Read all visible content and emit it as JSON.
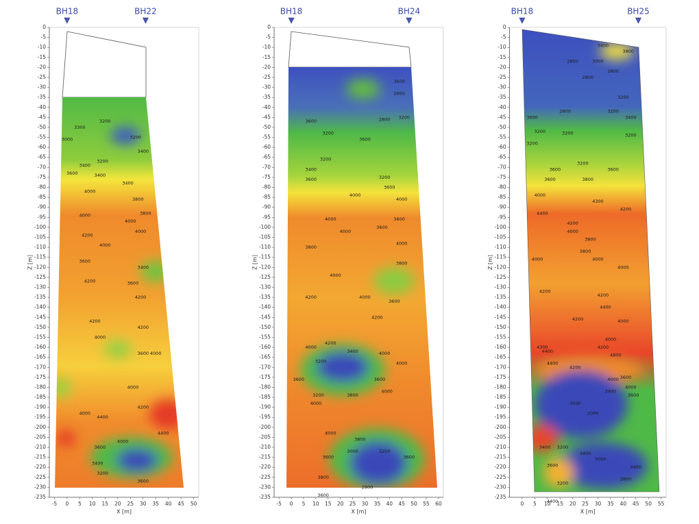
{
  "chart_data": [
    {
      "type": "contour",
      "xlabel": "X [m]",
      "ylabel": "Z [m]",
      "xlim": [
        -7,
        52
      ],
      "ylim": [
        -235,
        0
      ],
      "xticks": [
        -5,
        0,
        5,
        10,
        15,
        20,
        25,
        30,
        35,
        40,
        45,
        50
      ],
      "yticks": [
        0,
        -5,
        -10,
        -15,
        -20,
        -25,
        -30,
        -35,
        -40,
        -45,
        -50,
        -55,
        -60,
        -65,
        -70,
        -75,
        -80,
        -85,
        -90,
        -95,
        -100,
        -105,
        -110,
        -115,
        -120,
        -125,
        -130,
        -135,
        -140,
        -145,
        -150,
        -155,
        -160,
        -165,
        -170,
        -175,
        -180,
        -185,
        -190,
        -195,
        -200,
        -205,
        -210,
        -215,
        -220,
        -225,
        -230,
        -235
      ],
      "boreholes": [
        {
          "label": "BH18",
          "x": 0
        },
        {
          "label": "BH22",
          "x": 31
        }
      ],
      "annotations": [
        {
          "text": "3200",
          "x": 15,
          "y": -47
        },
        {
          "text": "3300",
          "x": 5,
          "y": -50
        },
        {
          "text": "3000",
          "x": 0,
          "y": -56
        },
        {
          "text": "3200",
          "x": 27,
          "y": -55
        },
        {
          "text": "3400",
          "x": 30,
          "y": -62
        },
        {
          "text": "3200",
          "x": 14,
          "y": -67
        },
        {
          "text": "3400",
          "x": 7,
          "y": -69
        },
        {
          "text": "3600",
          "x": 2,
          "y": -73
        },
        {
          "text": "3400",
          "x": 13,
          "y": -74
        },
        {
          "text": "3400",
          "x": 24,
          "y": -78
        },
        {
          "text": "4000",
          "x": 9,
          "y": -82
        },
        {
          "text": "3800",
          "x": 28,
          "y": -86
        },
        {
          "text": "3800",
          "x": 31,
          "y": -93
        },
        {
          "text": "4000",
          "x": 7,
          "y": -94
        },
        {
          "text": "4000",
          "x": 25,
          "y": -97
        },
        {
          "text": "4200",
          "x": 8,
          "y": -104
        },
        {
          "text": "4000",
          "x": 29,
          "y": -102
        },
        {
          "text": "4000",
          "x": 15,
          "y": -109
        },
        {
          "text": "3600",
          "x": 7,
          "y": -117
        },
        {
          "text": "3400",
          "x": 30,
          "y": -120
        },
        {
          "text": "4200",
          "x": 9,
          "y": -127
        },
        {
          "text": "3600",
          "x": 26,
          "y": -128
        },
        {
          "text": "4200",
          "x": 29,
          "y": -135
        },
        {
          "text": "4200",
          "x": 11,
          "y": -147
        },
        {
          "text": "4200",
          "x": 30,
          "y": -150
        },
        {
          "text": "4000",
          "x": 13,
          "y": -155
        },
        {
          "text": "3600",
          "x": 30,
          "y": -163
        },
        {
          "text": "4000",
          "x": 35,
          "y": -163
        },
        {
          "text": "4000",
          "x": 26,
          "y": -180
        },
        {
          "text": "4200",
          "x": 30,
          "y": -190
        },
        {
          "text": "4000",
          "x": 7,
          "y": -193
        },
        {
          "text": "4400",
          "x": 14,
          "y": -195
        },
        {
          "text": "4000",
          "x": 22,
          "y": -207
        },
        {
          "text": "3600",
          "x": 13,
          "y": -210
        },
        {
          "text": "4400",
          "x": 38,
          "y": -203
        },
        {
          "text": "3400",
          "x": 12,
          "y": -218
        },
        {
          "text": "3200",
          "x": 14,
          "y": -223
        },
        {
          "text": "3600",
          "x": 30,
          "y": -227
        }
      ]
    },
    {
      "type": "contour",
      "xlabel": "X [m]",
      "ylabel": "Z [m]",
      "xlim": [
        -7,
        62
      ],
      "ylim": [
        -235,
        0
      ],
      "xticks": [
        -5,
        0,
        5,
        10,
        15,
        20,
        25,
        30,
        35,
        40,
        45,
        50,
        55,
        60
      ],
      "yticks": [
        0,
        -5,
        -10,
        -15,
        -20,
        -25,
        -30,
        -35,
        -40,
        -45,
        -50,
        -55,
        -60,
        -65,
        -70,
        -75,
        -80,
        -85,
        -90,
        -95,
        -100,
        -105,
        -110,
        -115,
        -120,
        -125,
        -130,
        -135,
        -140,
        -145,
        -150,
        -155,
        -160,
        -165,
        -170,
        -175,
        -180,
        -185,
        -190,
        -195,
        -200,
        -205,
        -210,
        -215,
        -220,
        -225,
        -230,
        -235
      ],
      "boreholes": [
        {
          "label": "BH18",
          "x": 0
        },
        {
          "label": "BH24",
          "x": 48
        }
      ],
      "annotations": [
        {
          "text": "3600",
          "x": 44,
          "y": -27
        },
        {
          "text": "2800",
          "x": 44,
          "y": -33
        },
        {
          "text": "2800",
          "x": 38,
          "y": -46
        },
        {
          "text": "3200",
          "x": 46,
          "y": -45
        },
        {
          "text": "3600",
          "x": 8,
          "y": -47
        },
        {
          "text": "3200",
          "x": 15,
          "y": -53
        },
        {
          "text": "3600",
          "x": 30,
          "y": -56
        },
        {
          "text": "3200",
          "x": 14,
          "y": -66
        },
        {
          "text": "3400",
          "x": 8,
          "y": -71
        },
        {
          "text": "3600",
          "x": 8,
          "y": -76
        },
        {
          "text": "3200",
          "x": 38,
          "y": -75
        },
        {
          "text": "3600",
          "x": 40,
          "y": -80
        },
        {
          "text": "4000",
          "x": 26,
          "y": -84
        },
        {
          "text": "4000",
          "x": 45,
          "y": -86
        },
        {
          "text": "4000",
          "x": 16,
          "y": -96
        },
        {
          "text": "3600",
          "x": 44,
          "y": -96
        },
        {
          "text": "3600",
          "x": 37,
          "y": -100
        },
        {
          "text": "4000",
          "x": 22,
          "y": -102
        },
        {
          "text": "4000",
          "x": 45,
          "y": -108
        },
        {
          "text": "3800",
          "x": 8,
          "y": -110
        },
        {
          "text": "3800",
          "x": 45,
          "y": -118
        },
        {
          "text": "4000",
          "x": 18,
          "y": -124
        },
        {
          "text": "4200",
          "x": 8,
          "y": -135
        },
        {
          "text": "4000",
          "x": 30,
          "y": -135
        },
        {
          "text": "3600",
          "x": 42,
          "y": -137
        },
        {
          "text": "4200",
          "x": 35,
          "y": -145
        },
        {
          "text": "4200",
          "x": 16,
          "y": -158
        },
        {
          "text": "4000",
          "x": 8,
          "y": -160
        },
        {
          "text": "3400",
          "x": 25,
          "y": -162
        },
        {
          "text": "4000",
          "x": 38,
          "y": -163
        },
        {
          "text": "3200",
          "x": 12,
          "y": -167
        },
        {
          "text": "4000",
          "x": 45,
          "y": -168
        },
        {
          "text": "3600",
          "x": 3,
          "y": -176
        },
        {
          "text": "3600",
          "x": 36,
          "y": -176
        },
        {
          "text": "3200",
          "x": 11,
          "y": -184
        },
        {
          "text": "3800",
          "x": 25,
          "y": -184
        },
        {
          "text": "4000",
          "x": 39,
          "y": -182
        },
        {
          "text": "4000",
          "x": 10,
          "y": -188
        },
        {
          "text": "4000",
          "x": 16,
          "y": -203
        },
        {
          "text": "3800",
          "x": 28,
          "y": -206
        },
        {
          "text": "3000",
          "x": 25,
          "y": -212
        },
        {
          "text": "3200",
          "x": 38,
          "y": -212
        },
        {
          "text": "3600",
          "x": 15,
          "y": -215
        },
        {
          "text": "3600",
          "x": 48,
          "y": -215
        },
        {
          "text": "3800",
          "x": 13,
          "y": -225
        },
        {
          "text": "2800",
          "x": 31,
          "y": -230
        },
        {
          "text": "3600",
          "x": 13,
          "y": -234
        }
      ]
    },
    {
      "type": "contour",
      "xlabel": "X [m]",
      "ylabel": "Z [m]",
      "xlim": [
        -5,
        57
      ],
      "ylim": [
        -235,
        0
      ],
      "xticks": [
        0,
        5,
        10,
        15,
        20,
        25,
        30,
        35,
        40,
        45,
        50,
        55
      ],
      "yticks": [
        0,
        -5,
        -10,
        -15,
        -20,
        -25,
        -30,
        -35,
        -40,
        -45,
        -50,
        -55,
        -60,
        -65,
        -70,
        -75,
        -80,
        -85,
        -90,
        -95,
        -100,
        -105,
        -110,
        -115,
        -120,
        -125,
        -130,
        -135,
        -140,
        -145,
        -150,
        -155,
        -160,
        -165,
        -170,
        -175,
        -180,
        -185,
        -190,
        -195,
        -200,
        -205,
        -210,
        -215,
        -220,
        -225,
        -230,
        -235
      ],
      "boreholes": [
        {
          "label": "BH18",
          "x": 0
        },
        {
          "label": "BH25",
          "x": 46
        }
      ],
      "annotations": [
        {
          "text": "3400",
          "x": 32,
          "y": -9
        },
        {
          "text": "3800",
          "x": 42,
          "y": -12
        },
        {
          "text": "2800",
          "x": 20,
          "y": -17
        },
        {
          "text": "3000",
          "x": 30,
          "y": -17
        },
        {
          "text": "2800",
          "x": 36,
          "y": -22
        },
        {
          "text": "2800",
          "x": 26,
          "y": -25
        },
        {
          "text": "3200",
          "x": 40,
          "y": -35
        },
        {
          "text": "2800",
          "x": 17,
          "y": -42
        },
        {
          "text": "3200",
          "x": 36,
          "y": -42
        },
        {
          "text": "3400",
          "x": 43,
          "y": -45
        },
        {
          "text": "3600",
          "x": 4,
          "y": -45
        },
        {
          "text": "3200",
          "x": 7,
          "y": -52
        },
        {
          "text": "3200",
          "x": 18,
          "y": -53
        },
        {
          "text": "3200",
          "x": 43,
          "y": -54
        },
        {
          "text": "3200",
          "x": 4,
          "y": -58
        },
        {
          "text": "3200",
          "x": 24,
          "y": -68
        },
        {
          "text": "3600",
          "x": 13,
          "y": -71
        },
        {
          "text": "3600",
          "x": 36,
          "y": -71
        },
        {
          "text": "3600",
          "x": 11,
          "y": -76
        },
        {
          "text": "3800",
          "x": 26,
          "y": -76
        },
        {
          "text": "4000",
          "x": 7,
          "y": -84
        },
        {
          "text": "4300",
          "x": 30,
          "y": -87
        },
        {
          "text": "4400",
          "x": 8,
          "y": -93
        },
        {
          "text": "4200",
          "x": 41,
          "y": -91
        },
        {
          "text": "4200",
          "x": 20,
          "y": -98
        },
        {
          "text": "4000",
          "x": 20,
          "y": -102
        },
        {
          "text": "3800",
          "x": 27,
          "y": -106
        },
        {
          "text": "3800",
          "x": 25,
          "y": -112
        },
        {
          "text": "4000",
          "x": 6,
          "y": -116
        },
        {
          "text": "4000",
          "x": 30,
          "y": -116
        },
        {
          "text": "4000",
          "x": 40,
          "y": -120
        },
        {
          "text": "4200",
          "x": 9,
          "y": -132
        },
        {
          "text": "4200",
          "x": 32,
          "y": -134
        },
        {
          "text": "4400",
          "x": 33,
          "y": -140
        },
        {
          "text": "4200",
          "x": 22,
          "y": -146
        },
        {
          "text": "4000",
          "x": 40,
          "y": -147
        },
        {
          "text": "4000",
          "x": 35,
          "y": -156
        },
        {
          "text": "4200",
          "x": 32,
          "y": -160
        },
        {
          "text": "4400",
          "x": 10,
          "y": -162
        },
        {
          "text": "4300",
          "x": 8,
          "y": -160
        },
        {
          "text": "4800",
          "x": 37,
          "y": -164
        },
        {
          "text": "4400",
          "x": 12,
          "y": -168
        },
        {
          "text": "4200",
          "x": 21,
          "y": -170
        },
        {
          "text": "4000",
          "x": 36,
          "y": -176
        },
        {
          "text": "3600",
          "x": 41,
          "y": -175
        },
        {
          "text": "4000",
          "x": 43,
          "y": -180
        },
        {
          "text": "3600",
          "x": 44,
          "y": -184
        },
        {
          "text": "3400",
          "x": 35,
          "y": -182
        },
        {
          "text": "3000",
          "x": 21,
          "y": -188
        },
        {
          "text": "2000",
          "x": 28,
          "y": -193
        },
        {
          "text": "3400",
          "x": 9,
          "y": -210
        },
        {
          "text": "3200",
          "x": 16,
          "y": -210
        },
        {
          "text": "3400",
          "x": 25,
          "y": -213
        },
        {
          "text": "3000",
          "x": 31,
          "y": -216
        },
        {
          "text": "3400",
          "x": 45,
          "y": -220
        },
        {
          "text": "3600",
          "x": 12,
          "y": -219
        },
        {
          "text": "3200",
          "x": 16,
          "y": -228
        },
        {
          "text": "2800",
          "x": 41,
          "y": -226
        },
        {
          "text": "4400",
          "x": 12,
          "y": -237
        }
      ]
    }
  ]
}
